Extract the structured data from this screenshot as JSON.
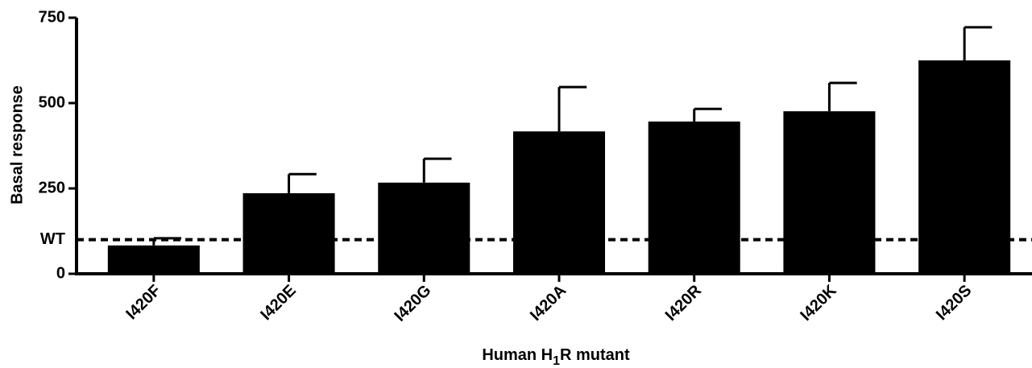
{
  "chart_data": {
    "type": "bar",
    "categories": [
      "I420F",
      "I420E",
      "I420G",
      "I420A",
      "I420R",
      "I420K",
      "I420S"
    ],
    "values": [
      83,
      236,
      267,
      417,
      446,
      476,
      625
    ],
    "errors": [
      21,
      56,
      70,
      130,
      37,
      83,
      97
    ],
    "color": "#000000",
    "ylim": [
      0,
      750
    ],
    "yticks": [
      0,
      250,
      500,
      750
    ],
    "ylabel": "Basal response",
    "xlabel_parts": [
      "Human H",
      "1",
      "R mutant"
    ],
    "reference_line": {
      "value": 100,
      "label": "WT"
    }
  }
}
